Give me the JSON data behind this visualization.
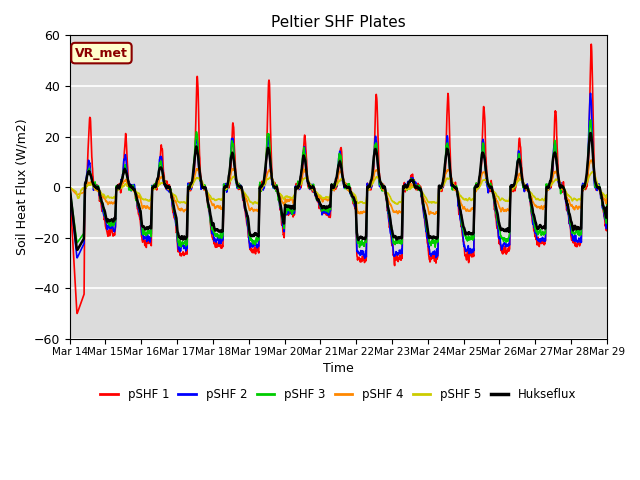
{
  "title": "Peltier SHF Plates",
  "xlabel": "Time",
  "ylabel": "Soil Heat Flux (W/m2)",
  "ylim": [
    -60,
    60
  ],
  "yticks": [
    -60,
    -40,
    -20,
    0,
    20,
    40,
    60
  ],
  "annotation": "VR_met",
  "series_colors": [
    "#ff0000",
    "#0000ff",
    "#00cc00",
    "#ff8800",
    "#cccc00",
    "#000000"
  ],
  "series_labels": [
    "pSHF 1",
    "pSHF 2",
    "pSHF 3",
    "pSHF 4",
    "pSHF 5",
    "Hukseflux"
  ],
  "xtick_labels": [
    "Mar 14",
    "Mar 15",
    "Mar 16",
    "Mar 17",
    "Mar 18",
    "Mar 19",
    "Mar 20",
    "Mar 21",
    "Mar 22",
    "Mar 23",
    "Mar 24",
    "Mar 25",
    "Mar 26",
    "Mar 27",
    "Mar 28",
    "Mar 29"
  ],
  "bg_color": "#dcdcdc",
  "fig_color": "#ffffff",
  "grid_color": "#ffffff"
}
